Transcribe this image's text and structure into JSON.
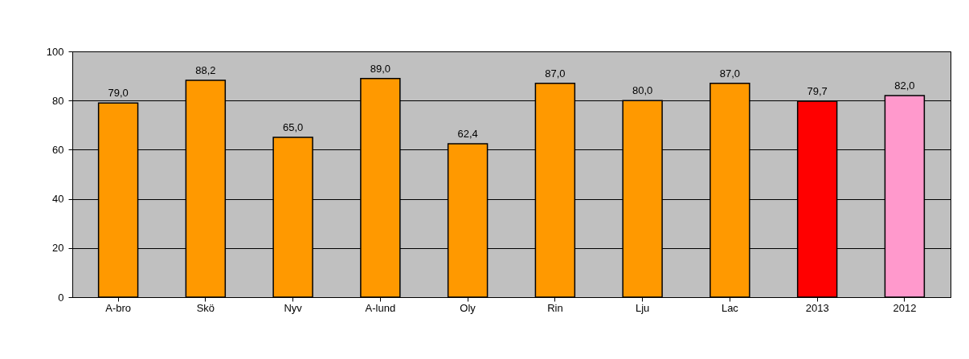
{
  "chart_data": {
    "type": "bar",
    "categories": [
      "A-bro",
      "Skö",
      "Nyv",
      "A-lund",
      "Oly",
      "Rin",
      "Lju",
      "Lac",
      "2013",
      "2012"
    ],
    "values": [
      79.0,
      88.2,
      65.0,
      89.0,
      62.4,
      87.0,
      80.0,
      87.0,
      79.7,
      82.0
    ],
    "colors": [
      "#ff9900",
      "#ff9900",
      "#ff9900",
      "#ff9900",
      "#ff9900",
      "#ff9900",
      "#ff9900",
      "#ff9900",
      "#ff0000",
      "#ff99cc"
    ],
    "value_labels": [
      "79,0",
      "88,2",
      "65,0",
      "89,0",
      "62,4",
      "87,0",
      "80,0",
      "87,0",
      "79,7",
      "82,0"
    ],
    "ylim": [
      0,
      100
    ],
    "yticks": [
      0,
      20,
      40,
      60,
      80,
      100
    ],
    "grid": "y"
  }
}
